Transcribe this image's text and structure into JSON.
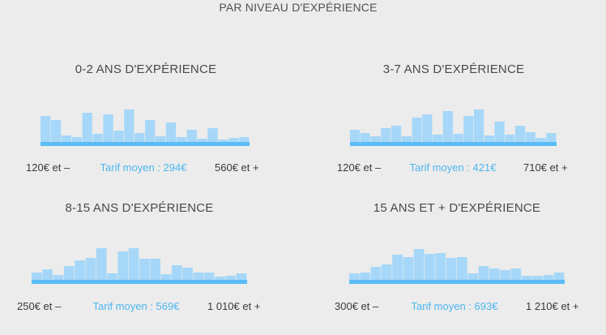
{
  "header": {
    "title": "PAR NIVEAU D'EXPÉRIENCE"
  },
  "colors": {
    "bar": "#a6d7f8",
    "baseline": "#5bbdf6",
    "average_text": "#4db6ef",
    "text": "#3a3a3a",
    "background": "#ececec"
  },
  "chart_data": [
    {
      "type": "bar",
      "title": "0-2 ANS D'EXPÉRIENCE",
      "min_label": "120€ et –",
      "average_label": "Tarif moyen : 294€",
      "max_label": "560€ et +",
      "values": [
        32,
        27,
        8,
        6,
        36,
        10,
        34,
        14,
        40,
        11,
        27,
        7,
        24,
        6,
        15,
        4,
        17,
        3,
        5,
        6
      ],
      "ylim": [
        0,
        45
      ]
    },
    {
      "type": "bar",
      "title": "3-7 ANS D'EXPÉRIENCE",
      "min_label": "120€ et –",
      "average_label": "Tarif moyen : 421€",
      "max_label": "710€ et +",
      "values": [
        15,
        11,
        7,
        17,
        20,
        7,
        30,
        34,
        9,
        38,
        10,
        32,
        40,
        8,
        25,
        9,
        20,
        12,
        5,
        11
      ],
      "ylim": [
        0,
        45
      ]
    },
    {
      "type": "bar",
      "title": "8-15 ANS D'EXPÉRIENCE",
      "min_label": "250€ et –",
      "average_label": "Tarif moyen : 569€",
      "max_label": "1 010€ et +",
      "values": [
        9,
        13,
        6,
        17,
        24,
        27,
        39,
        8,
        35,
        39,
        26,
        26,
        7,
        18,
        15,
        9,
        9,
        4,
        5,
        8
      ],
      "ylim": [
        0,
        45
      ]
    },
    {
      "type": "bar",
      "title": "15 ANS ET + D'EXPÉRIENCE",
      "min_label": "300€ et –",
      "average_label": "Tarif moyen : 693€",
      "max_label": "1 210€ et +",
      "values": [
        8,
        9,
        16,
        19,
        31,
        28,
        38,
        32,
        33,
        27,
        28,
        8,
        17,
        14,
        12,
        14,
        5,
        5,
        6,
        9
      ],
      "ylim": [
        0,
        45
      ]
    }
  ]
}
